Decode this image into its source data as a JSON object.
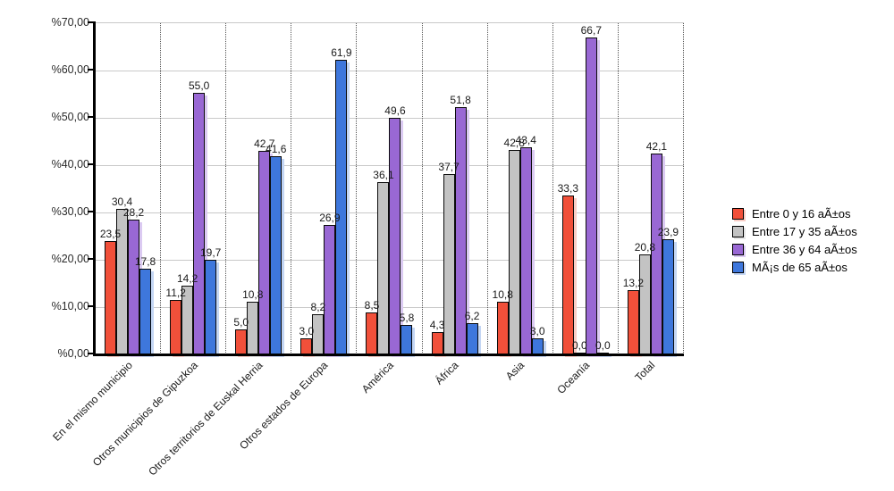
{
  "chart_data": {
    "type": "bar",
    "title": "",
    "xlabel": "",
    "ylabel": "",
    "ylim": [
      0,
      70
    ],
    "ytick_step": 10,
    "yticks": [
      {
        "v": 70,
        "label": "%70,00"
      },
      {
        "v": 60,
        "label": "%60,00"
      },
      {
        "v": 50,
        "label": "%50,00"
      },
      {
        "v": 40,
        "label": "%40,00"
      },
      {
        "v": 30,
        "label": "%30,00"
      },
      {
        "v": 20,
        "label": "%20,00"
      },
      {
        "v": 10,
        "label": "%10,00"
      },
      {
        "v": 0,
        "label": "%0,00"
      }
    ],
    "categories": [
      "En el mismo municipio",
      "Otros municipios de Gipuzkoa",
      "Otros territorios de Euskal Herria",
      "Otros estados de Europa",
      "América",
      "África",
      "Asia",
      "Oceanía",
      "Total"
    ],
    "series": [
      {
        "name": "Entre 0 y 16 aÃ±os",
        "color": "#f1503a",
        "shadow": "#f9cdc5",
        "values": [
          23.5,
          11.2,
          5.0,
          3.0,
          8.5,
          4.3,
          10.8,
          33.3,
          13.2
        ]
      },
      {
        "name": "Entre 17 y 35 aÃ±os",
        "color": "#c3c3c3",
        "shadow": "#e4e4e4",
        "values": [
          30.4,
          14.2,
          10.8,
          8.2,
          36.1,
          37.7,
          42.8,
          0.0,
          20.8
        ]
      },
      {
        "name": "Entre 36 y 64 aÃ±os",
        "color": "#9968d4",
        "shadow": "#dbcaf2",
        "values": [
          28.2,
          55.0,
          42.7,
          26.9,
          49.6,
          51.8,
          43.4,
          66.7,
          42.1
        ]
      },
      {
        "name": "MÃ¡s de 65 aÃ±os",
        "color": "#3e77dc",
        "shadow": "#c4d6f4",
        "values": [
          17.8,
          19.7,
          41.6,
          61.9,
          5.8,
          6.2,
          3.0,
          0.0,
          23.9
        ]
      }
    ],
    "value_label_format": "one-decimal-comma",
    "grid": {
      "horizontal": "solid",
      "vertical": "dotted-between-groups"
    },
    "legend_position": "right-middle"
  }
}
